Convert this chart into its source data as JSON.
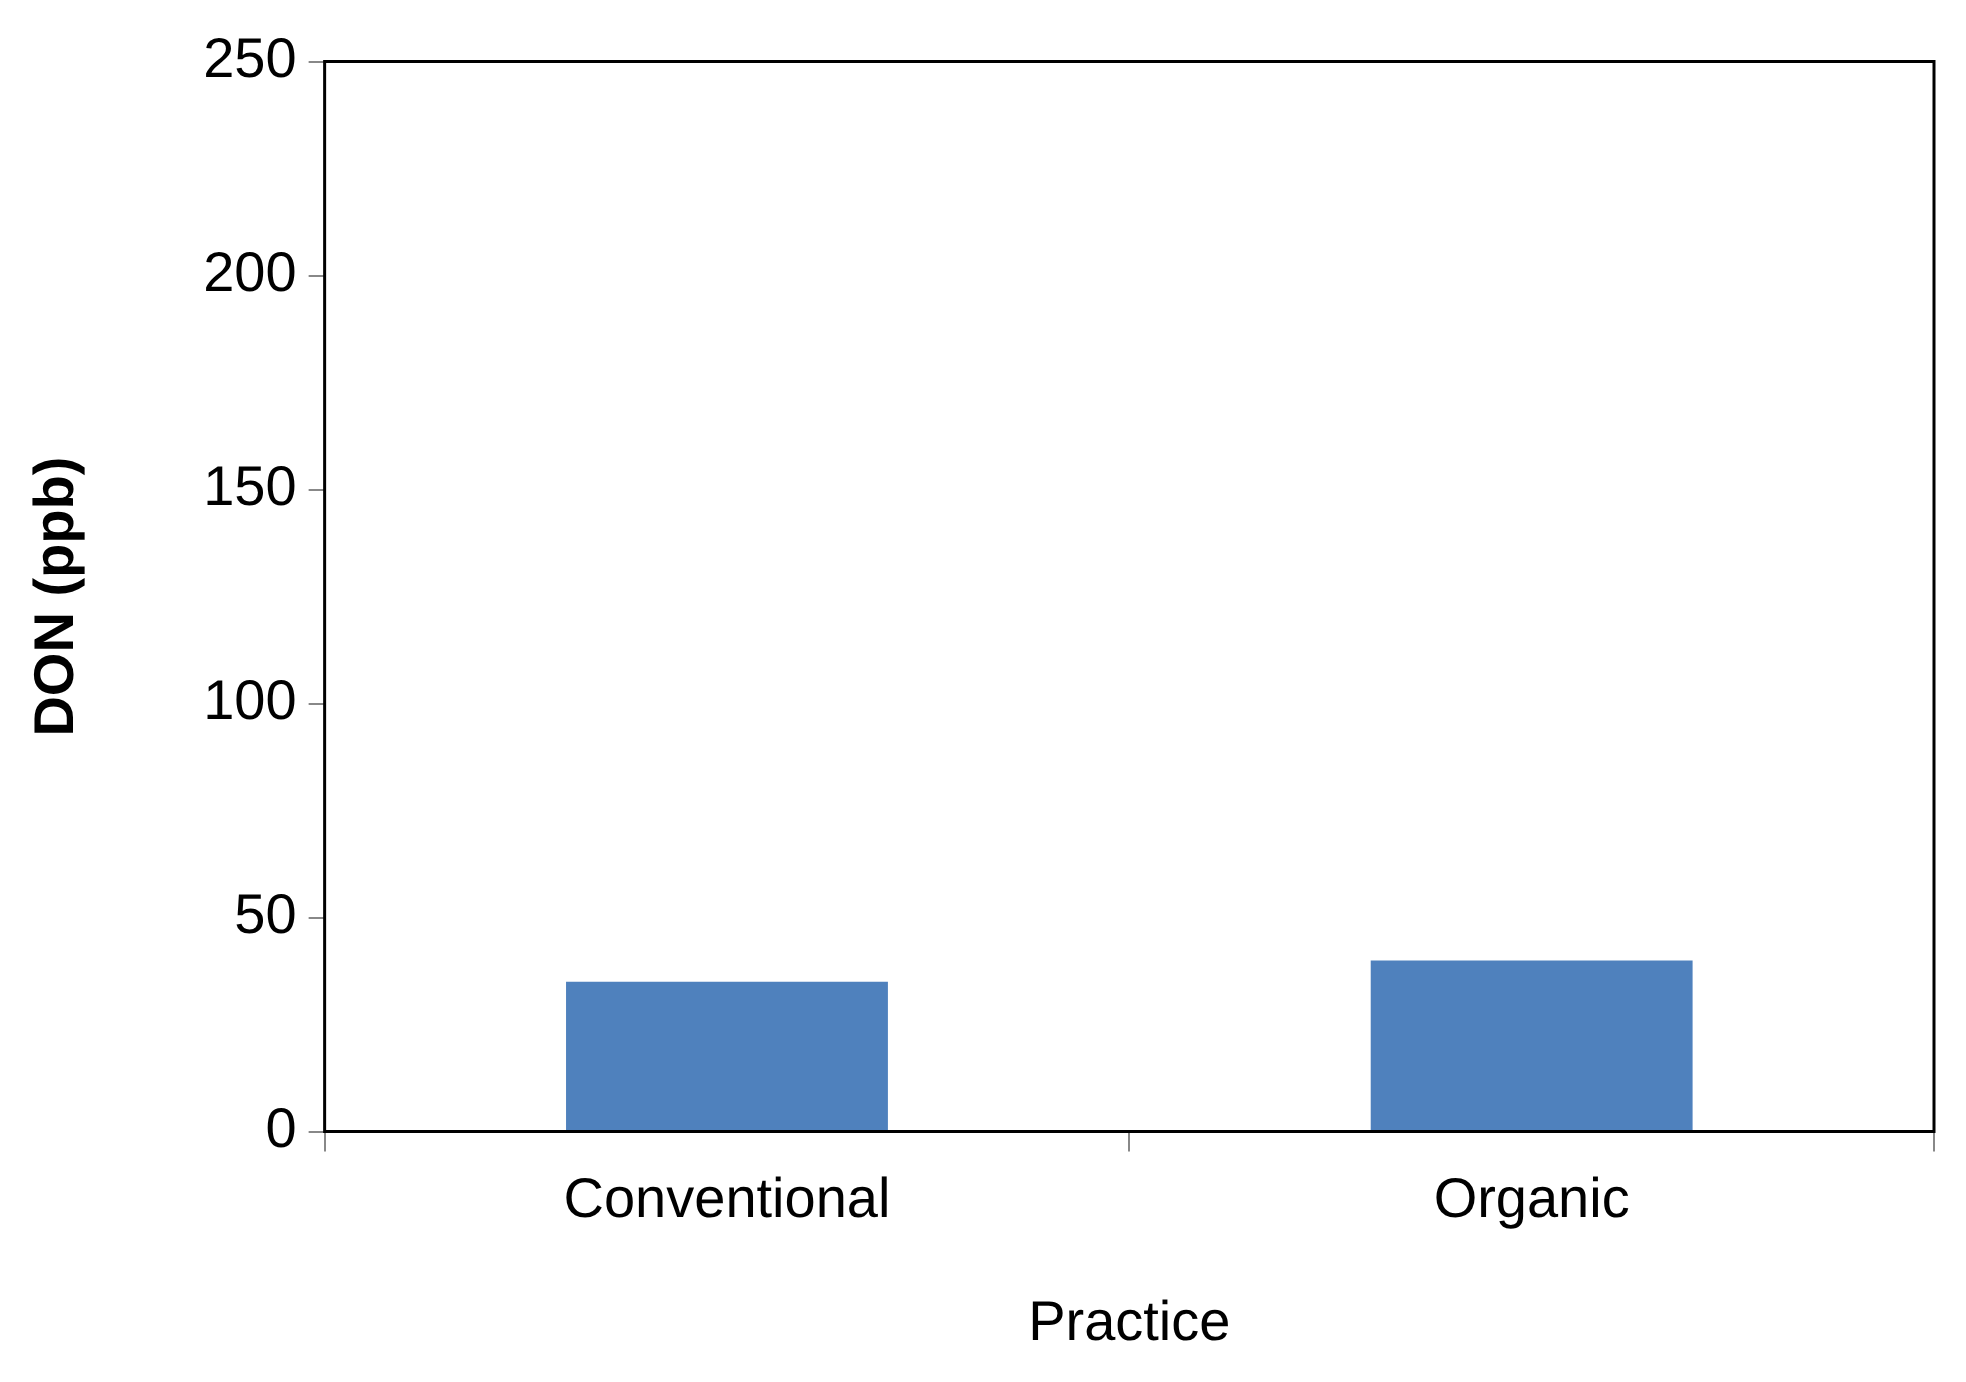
{
  "chart_data": {
    "type": "bar",
    "xlabel": "Practice",
    "ylabel": "DON (ppb)",
    "categories": [
      "Conventional",
      "Organic"
    ],
    "values": [
      35,
      40
    ],
    "color": "#4f81bd",
    "ylim": [
      0,
      250
    ],
    "yticks": [
      0,
      50,
      100,
      150,
      200,
      250
    ],
    "grid": false,
    "legend": false
  }
}
